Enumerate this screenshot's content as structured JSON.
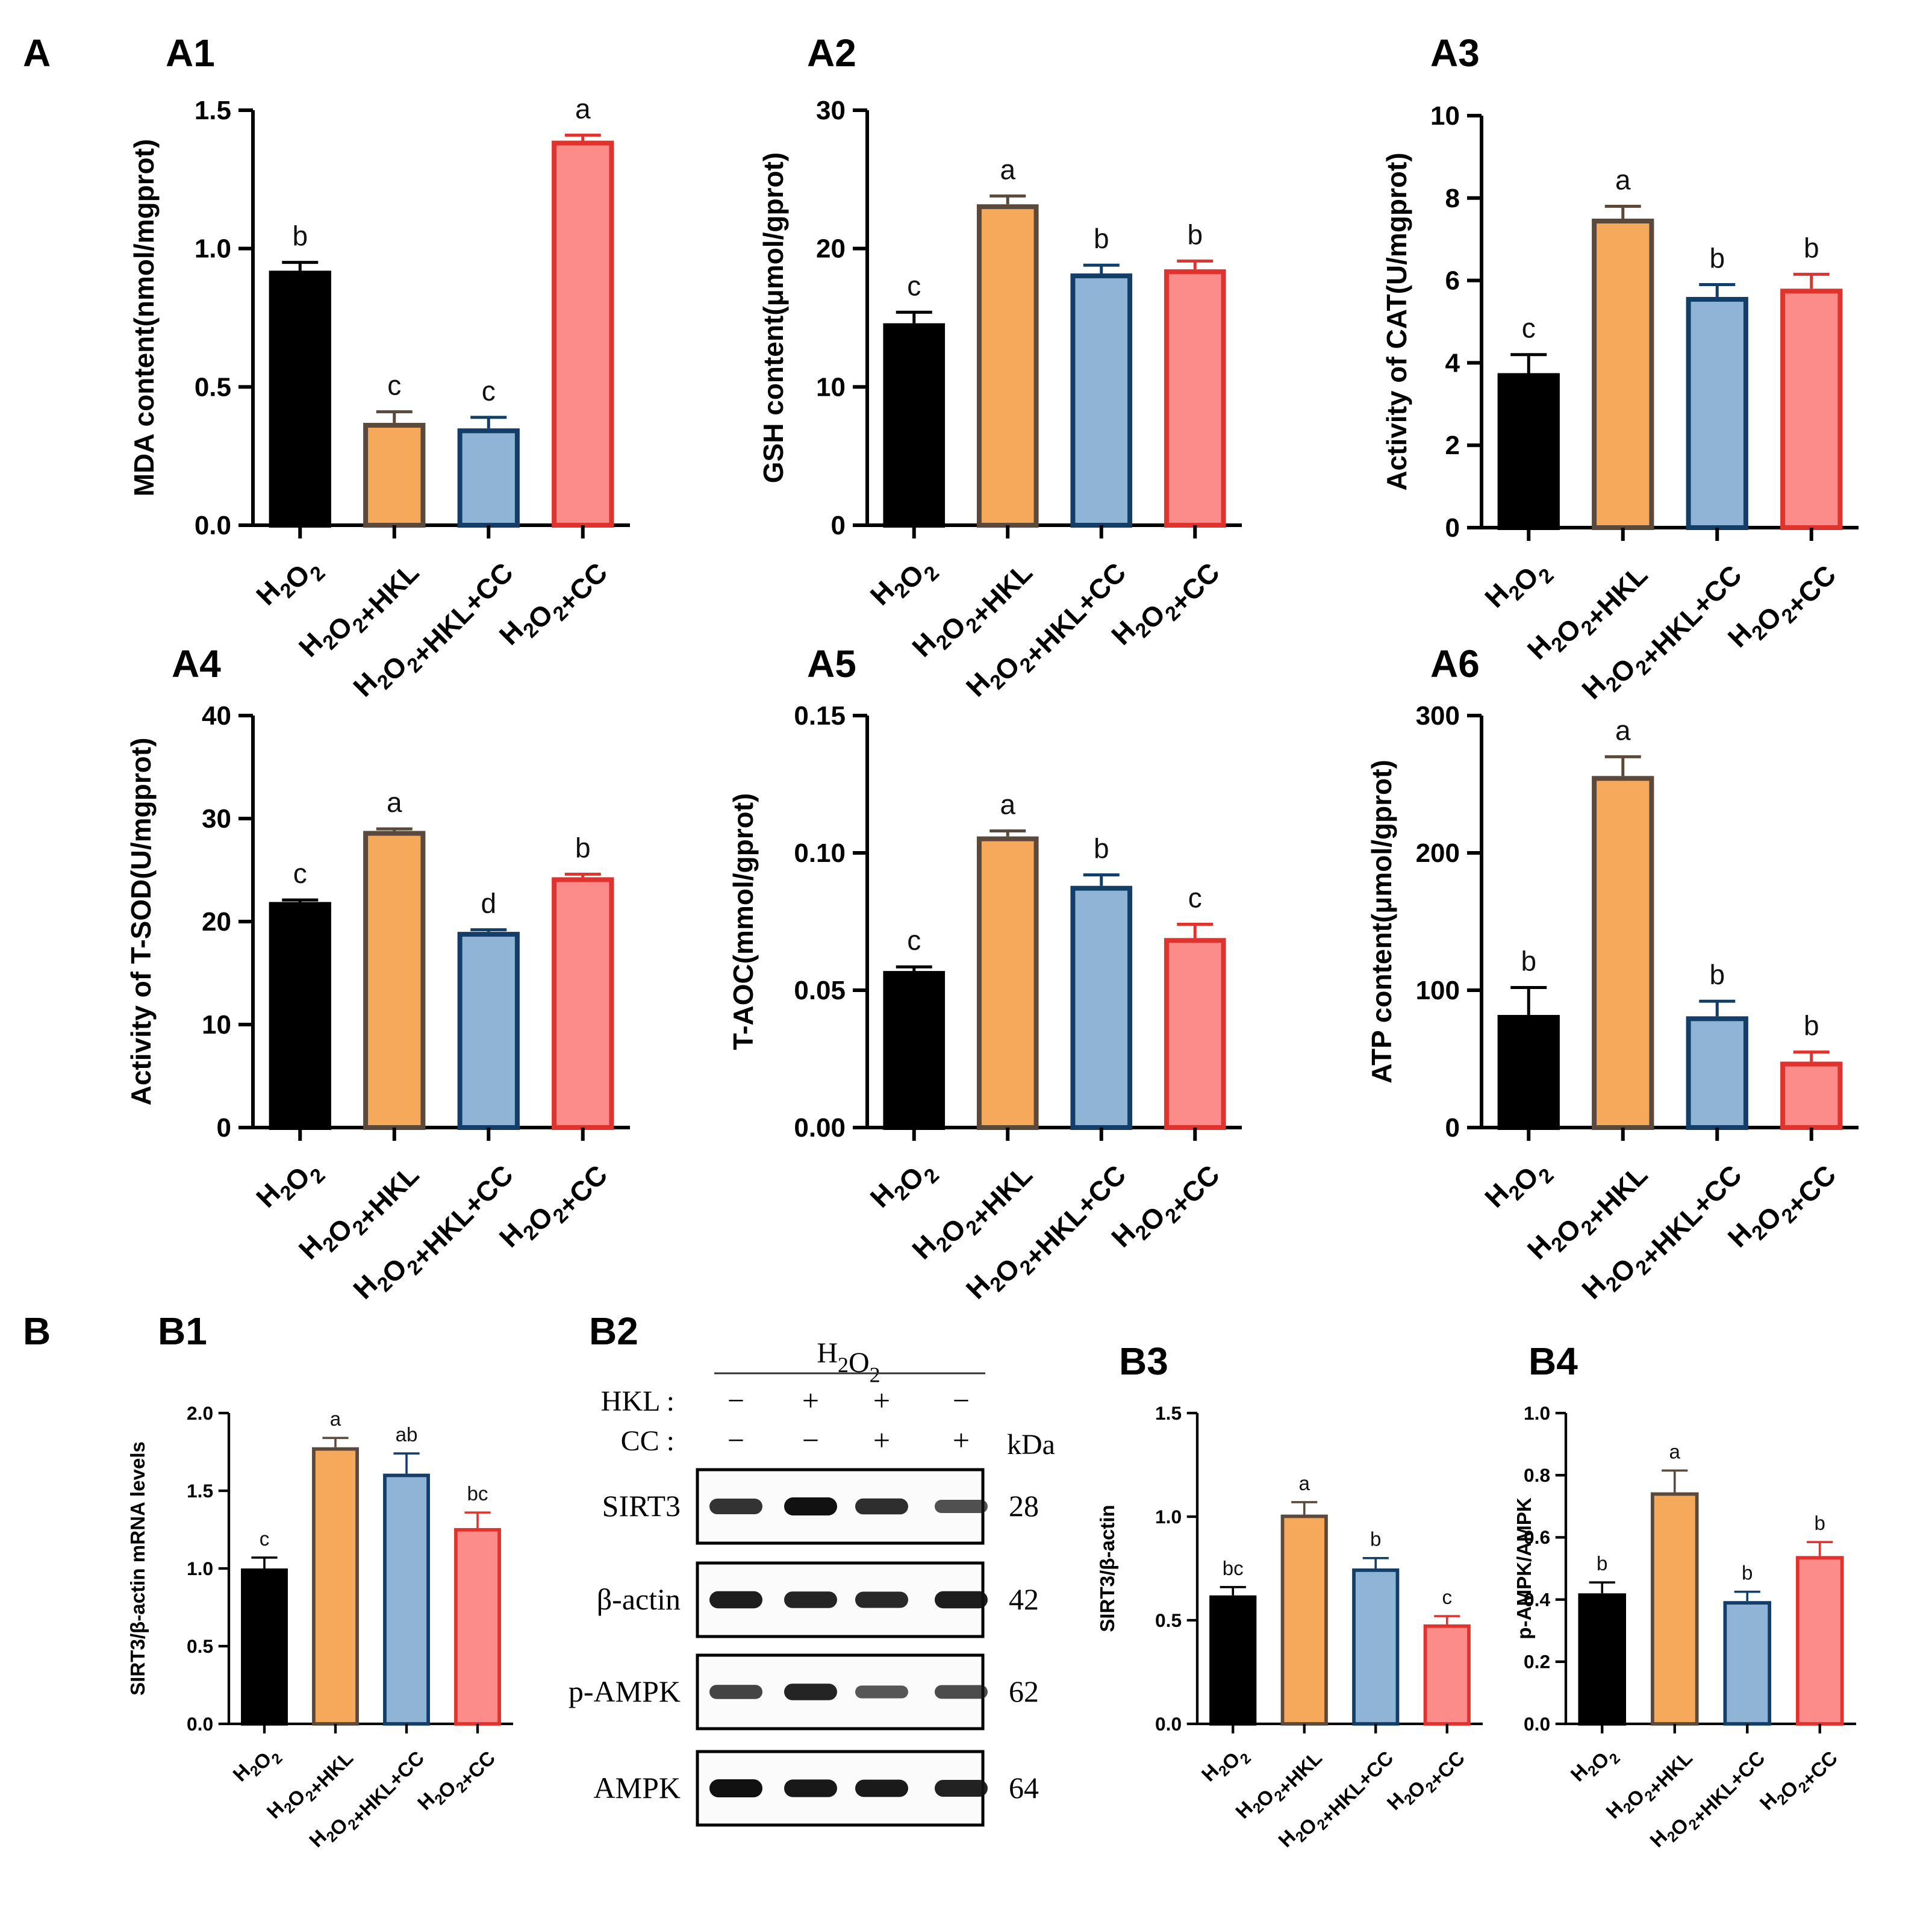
{
  "figure": {
    "section_labels": [
      "A",
      "B"
    ],
    "groups": [
      "H2O2",
      "H2O2+HKL",
      "H2O2+HKL+CC",
      "H2O2+CC"
    ],
    "group_colors": {
      "fill": [
        "#000000",
        "#f7a95b",
        "#8fb4d6",
        "#fc8c89"
      ],
      "stroke": [
        "#000000",
        "#5b4a3b",
        "#123e68",
        "#e0332d"
      ]
    }
  },
  "chart_data": [
    {
      "id": "A1",
      "type": "bar",
      "panel_label": "A1",
      "categories": [
        "H2O2",
        "H2O2+HKL",
        "H2O2+HKL+CC",
        "H2O2+CC"
      ],
      "values": [
        0.92,
        0.37,
        0.35,
        1.39
      ],
      "errors": [
        0.03,
        0.04,
        0.04,
        0.02
      ],
      "letters": [
        "b",
        "c",
        "c",
        "a"
      ],
      "ylabel": "MDA content(nmol/mgprot)",
      "ylim": [
        0,
        1.5
      ],
      "yticks": [
        "0.0",
        "0.5",
        "1.0",
        "1.5"
      ]
    },
    {
      "id": "A2",
      "type": "bar",
      "panel_label": "A2",
      "categories": [
        "H2O2",
        "H2O2+HKL",
        "H2O2+HKL+CC",
        "H2O2+CC"
      ],
      "values": [
        14.6,
        23.2,
        18.2,
        18.5
      ],
      "errors": [
        0.8,
        0.6,
        0.6,
        0.6
      ],
      "letters": [
        "c",
        "a",
        "b",
        "b"
      ],
      "ylabel": "GSH content(μmol/gprot)",
      "ylim": [
        0,
        30
      ],
      "yticks": [
        "0",
        "10",
        "20",
        "30"
      ]
    },
    {
      "id": "A3",
      "type": "bar",
      "panel_label": "A3",
      "categories": [
        "H2O2",
        "H2O2+HKL",
        "H2O2+HKL+CC",
        "H2O2+CC"
      ],
      "values": [
        3.75,
        7.5,
        5.6,
        5.8
      ],
      "errors": [
        0.45,
        0.3,
        0.3,
        0.35
      ],
      "letters": [
        "c",
        "a",
        "b",
        "b"
      ],
      "ylabel": "Activity of CAT(U/mgprot)",
      "ylim": [
        0,
        10
      ],
      "yticks": [
        "0",
        "2",
        "4",
        "6",
        "8",
        "10"
      ]
    },
    {
      "id": "A4",
      "type": "bar",
      "panel_label": "A4",
      "categories": [
        "H2O2",
        "H2O2+HKL",
        "H2O2+HKL+CC",
        "H2O2+CC"
      ],
      "values": [
        21.9,
        28.8,
        19.0,
        24.3
      ],
      "errors": [
        0.2,
        0.2,
        0.2,
        0.3
      ],
      "letters": [
        "c",
        "a",
        "d",
        "b"
      ],
      "ylabel": "Activity of T-SOD(U/mgprot)",
      "ylim": [
        0,
        40
      ],
      "yticks": [
        "0",
        "10",
        "20",
        "30",
        "40"
      ]
    },
    {
      "id": "A5",
      "type": "bar",
      "panel_label": "A5",
      "categories": [
        "H2O2",
        "H2O2+HKL",
        "H2O2+HKL+CC",
        "H2O2+CC"
      ],
      "values": [
        0.057,
        0.106,
        0.088,
        0.069
      ],
      "errors": [
        0.0015,
        0.002,
        0.004,
        0.005
      ],
      "letters": [
        "c",
        "a",
        "b",
        "c"
      ],
      "ylabel": "T-AOC(mmol/gprot)",
      "ylim": [
        0,
        0.15
      ],
      "yticks": [
        "0.00",
        "0.05",
        "0.10",
        "0.15"
      ]
    },
    {
      "id": "A6",
      "type": "bar",
      "panel_label": "A6",
      "categories": [
        "H2O2",
        "H2O2+HKL",
        "H2O2+HKL+CC",
        "H2O2+CC"
      ],
      "values": [
        82,
        256,
        81,
        48
      ],
      "errors": [
        20,
        14,
        11,
        7
      ],
      "letters": [
        "b",
        "a",
        "b",
        "b"
      ],
      "ylabel": "ATP content(μmol/gprot)",
      "ylim": [
        0,
        300
      ],
      "yticks": [
        "0",
        "100",
        "200",
        "300"
      ]
    },
    {
      "id": "B1",
      "type": "bar",
      "panel_label": "B1",
      "categories": [
        "H2O2",
        "H2O2+HKL",
        "H2O2+HKL+CC",
        "H2O2+CC"
      ],
      "values": [
        1.0,
        1.78,
        1.61,
        1.26
      ],
      "errors": [
        0.07,
        0.06,
        0.13,
        0.1
      ],
      "letters": [
        "c",
        "a",
        "ab",
        "bc"
      ],
      "ylabel": "SIRT3/β-actin mRNA levels",
      "ylim": [
        0,
        2.0
      ],
      "yticks": [
        "0.0",
        "0.5",
        "1.0",
        "1.5",
        "2.0"
      ]
    },
    {
      "id": "B3",
      "type": "bar",
      "panel_label": "B3",
      "categories": [
        "H2O2",
        "H2O2+HKL",
        "H2O2+HKL+CC",
        "H2O2+CC"
      ],
      "values": [
        0.62,
        1.01,
        0.75,
        0.48
      ],
      "errors": [
        0.04,
        0.06,
        0.05,
        0.04
      ],
      "letters": [
        "bc",
        "a",
        "b",
        "c"
      ],
      "ylabel": "SIRT3/β-actin",
      "ylim": [
        0,
        1.5
      ],
      "yticks": [
        "0.0",
        "0.5",
        "1.0",
        "1.5"
      ]
    },
    {
      "id": "B4",
      "type": "bar",
      "panel_label": "B4",
      "categories": [
        "H2O2",
        "H2O2+HKL",
        "H2O2+HKL+CC",
        "H2O2+CC"
      ],
      "values": [
        0.42,
        0.745,
        0.395,
        0.54
      ],
      "errors": [
        0.035,
        0.07,
        0.03,
        0.045
      ],
      "letters": [
        "b",
        "a",
        "b",
        "b"
      ],
      "ylabel": "p-AMPK/AMPK",
      "ylim": [
        0,
        1.0
      ],
      "yticks": [
        "0.0",
        "0.2",
        "0.4",
        "0.6",
        "0.8",
        "1.0"
      ]
    }
  ],
  "western_blot": {
    "panel_label": "B2",
    "header": "H2O2",
    "rows": [
      {
        "label": "HKL :",
        "signs": [
          "−",
          "+",
          "+",
          "−"
        ]
      },
      {
        "label": "CC :",
        "signs": [
          "−",
          "−",
          "+",
          "+"
        ]
      }
    ],
    "unit": "kDa",
    "bands": [
      {
        "name": "SIRT3",
        "kda": "28",
        "intensity": [
          0.75,
          1.0,
          0.78,
          0.5
        ]
      },
      {
        "name": "β-actin",
        "kda": "42",
        "intensity": [
          0.9,
          0.85,
          0.82,
          0.9
        ]
      },
      {
        "name": "p-AMPK",
        "kda": "62",
        "intensity": [
          0.6,
          0.85,
          0.45,
          0.55
        ]
      },
      {
        "name": "AMPK",
        "kda": "64",
        "intensity": [
          1.0,
          0.95,
          0.92,
          0.88
        ]
      }
    ]
  }
}
